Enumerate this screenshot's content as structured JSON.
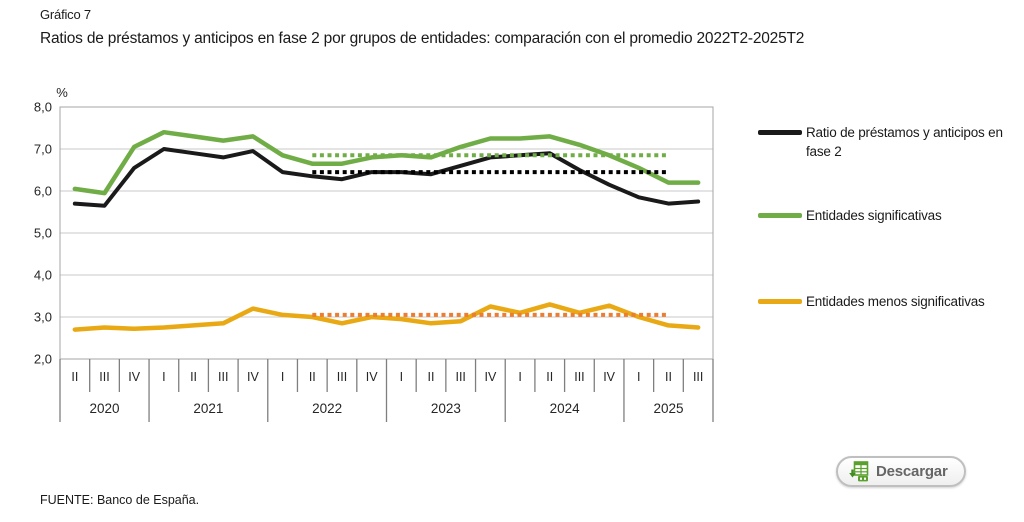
{
  "header": {
    "label": "Gráfico 7",
    "title": "Ratios de préstamos y anticipos en fase 2 por grupos de entidades: comparación con el promedio 2022T2-2025T2"
  },
  "chart_data": {
    "type": "line",
    "percent_label": "%",
    "ylim": [
      2.0,
      8.0
    ],
    "ytick_labels": [
      "8,0",
      "7,0",
      "6,0",
      "5,0",
      "4,0",
      "3,0",
      "2,0"
    ],
    "grid": true,
    "x_quarters": [
      "II",
      "III",
      "IV",
      "I",
      "II",
      "III",
      "IV",
      "I",
      "II",
      "III",
      "IV",
      "I",
      "II",
      "III",
      "IV",
      "I",
      "II",
      "III",
      "IV",
      "I",
      "II",
      "III"
    ],
    "x_years": [
      {
        "label": "2020",
        "quarters": 3
      },
      {
        "label": "2021",
        "quarters": 4
      },
      {
        "label": "2022",
        "quarters": 4
      },
      {
        "label": "2023",
        "quarters": 4
      },
      {
        "label": "2024",
        "quarters": 4
      },
      {
        "label": "2025",
        "quarters": 3
      }
    ],
    "series": [
      {
        "name": "Ratio de préstamos y anticipos en fase 2",
        "color": "#1a1a1a",
        "width": 4,
        "values": [
          5.7,
          5.65,
          6.55,
          7.0,
          6.9,
          6.8,
          6.95,
          6.45,
          6.35,
          6.28,
          6.45,
          6.45,
          6.4,
          6.6,
          6.8,
          6.85,
          6.9,
          6.5,
          6.15,
          5.85,
          5.7,
          5.75
        ]
      },
      {
        "name": "Entidades significativas",
        "color": "#70AD47",
        "width": 4.5,
        "values": [
          6.05,
          5.95,
          7.05,
          7.4,
          7.3,
          7.2,
          7.3,
          6.85,
          6.65,
          6.65,
          6.8,
          6.85,
          6.8,
          7.05,
          7.25,
          7.25,
          7.3,
          7.1,
          6.85,
          6.55,
          6.2,
          6.2
        ]
      },
      {
        "name": "Entidades menos significativas",
        "color": "#E9A915",
        "width": 4.5,
        "values": [
          2.7,
          2.75,
          2.72,
          2.75,
          2.8,
          2.85,
          3.2,
          3.05,
          3.0,
          2.85,
          3.0,
          2.95,
          2.85,
          2.9,
          3.25,
          3.1,
          3.3,
          3.1,
          3.27,
          3.0,
          2.8,
          2.75
        ]
      }
    ],
    "average_lines": [
      {
        "name": "promedio ratio total",
        "value": 6.45,
        "color": "#000000",
        "from_index": 8,
        "to_index": 20
      },
      {
        "name": "promedio entidades significativas",
        "value": 6.85,
        "color": "#70AD47",
        "from_index": 8,
        "to_index": 20
      },
      {
        "name": "promedio entidades menos significativas",
        "value": 3.05,
        "color": "#ED7D31",
        "from_index": 8,
        "to_index": 20
      }
    ],
    "average_period": "2022T2-2025T2",
    "legend_position": "right"
  },
  "download_button": {
    "label": "Descargar"
  },
  "footer": {
    "source": "FUENTE: Banco de España."
  }
}
